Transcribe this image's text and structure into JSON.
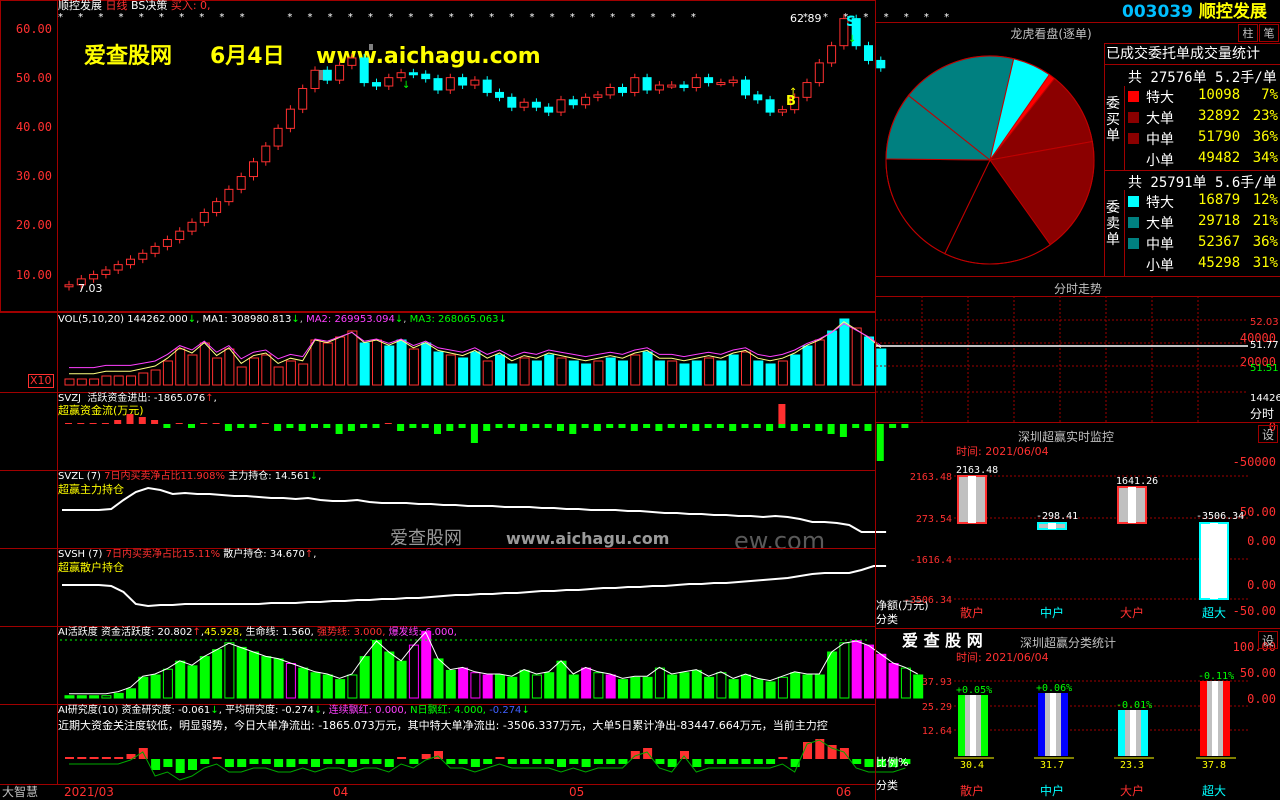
{
  "header": {
    "stock_name": "顺控发展",
    "period": "日线",
    "strategy": "BS决策",
    "buy_in": "买入: 0,",
    "watermark_site": "爱查股网",
    "watermark_date": "6月4日",
    "watermark_url": "www.aichagu.com"
  },
  "main_chart": {
    "y_ticks": [
      "60.00",
      "50.00",
      "40.00",
      "30.00",
      "20.00",
      "10.00"
    ],
    "high_label": "62.89",
    "low_label": "7.03",
    "signal_s": "S",
    "signal_b": "B"
  },
  "vol": {
    "title": "VOL(5,10,20)",
    "value": "144262.000",
    "ma1": "MA1: 308980.813",
    "ma2": "MA2: 269953.094",
    "ma3": "MA3: 268065.063",
    "y_ticks": [
      "40000",
      "20000"
    ],
    "unit": "X10"
  },
  "svzj": {
    "title": "SVZJ",
    "label": "活跃资金进出: -1865.076",
    "sub": "超赢资金流(万元)",
    "y_ticks": [
      "0",
      "-50000"
    ]
  },
  "svzl": {
    "title": "SVZL (7)",
    "label1": "7日内买卖净占比11.908%",
    "label2": "主力持仓: 14.561",
    "sub": "超赢主力持仓",
    "y_ticks": [
      "50.00",
      "0.00"
    ]
  },
  "svsh": {
    "title": "SVSH (7)",
    "label1": "7日内买卖净占比15.11%",
    "label2": "散户持仓: 34.670",
    "sub": "超赢散户持仓",
    "y_ticks": [
      "0.00",
      "-50.00"
    ]
  },
  "ai_active": {
    "title": "AI活跃度",
    "l1": "资金活跃度: 20.802",
    "l2": "45.928,",
    "l3": "生命线: 1.560,",
    "l4": "强势线: 3.000,",
    "l5": "爆发线: 6.000,",
    "y_ticks": [
      "100.00",
      "50.00",
      "0.00"
    ]
  },
  "ai_research": {
    "title": "AI研究度(10)",
    "l1": "资金研究度: -0.061",
    "l2": "平均研究度: -0.274",
    "l3": "连续飘红: 0.000,",
    "l4": "N日飘红: 4.000,",
    "l5": "-0.274",
    "desc": "近期大资金关注度较低，明显弱势，今日大单净流出: -1865.073万元，其中特大单净流出: -3506.337万元，大单5日累计净出-83447.664万元，当前主力控"
  },
  "bottom_axis": {
    "brand": "大智慧",
    "dates": [
      "2021/03",
      "04",
      "05",
      "06"
    ]
  },
  "watermark2": {
    "site": "爱查股网",
    "url": "www.aichagu.com",
    "tail": "ew.com"
  },
  "right_panel": {
    "code": "003039",
    "name": "顺控发展",
    "pie_title": "龙虎看盘(逐单)",
    "btn1": "柱",
    "btn2": "笔",
    "stats_title": "已成交委托单成交量统计",
    "buy_header": "共 27576单 5.2手/单",
    "buy_side": "委买单",
    "buy_rows": [
      {
        "name": "特大",
        "vol": "10098",
        "pct": "7%"
      },
      {
        "name": "大单",
        "vol": "32892",
        "pct": "23%"
      },
      {
        "name": "中单",
        "vol": "51790",
        "pct": "36%"
      },
      {
        "name": "小单",
        "vol": "49482",
        "pct": "34%"
      }
    ],
    "sell_header": "共 25791单 5.6手/单",
    "sell_side": "委卖单",
    "sell_rows": [
      {
        "name": "特大",
        "vol": "16879",
        "pct": "12%"
      },
      {
        "name": "大单",
        "vol": "29718",
        "pct": "21%"
      },
      {
        "name": "中单",
        "vol": "52367",
        "pct": "36%"
      },
      {
        "name": "小单",
        "vol": "45298",
        "pct": "31%"
      }
    ],
    "timeshare_title": "分时走势",
    "ts_prices": [
      "52.03",
      "51.77",
      "51.51",
      "14426"
    ],
    "ts_label": "分时",
    "monitor_title": "深圳超赢实时监控",
    "monitor_btn": "设",
    "monitor_time": "时间: 2021/06/04",
    "monitor_y": [
      "2163.48",
      "273.54",
      "-1616.4",
      "-3506.34"
    ],
    "monitor_vals": [
      "2163.48",
      "-298.41",
      "1641.26",
      "-3506.34"
    ],
    "monitor_ylabel": "净额(万元)",
    "monitor_xlabel": "分类",
    "cats": [
      "散户",
      "中户",
      "大户",
      "超大"
    ],
    "class_brand": "爱 查 股 网",
    "class_title": "深圳超赢分类统计",
    "class_btn": "设",
    "class_time": "时间: 2021/06/04",
    "class_y": [
      "37.93",
      "25.29",
      "12.64"
    ],
    "class_top": [
      "+0.05%",
      "+0.06%",
      "-0.01%",
      "-0.11%"
    ],
    "class_bottom": [
      "30.4",
      "31.7",
      "23.3",
      "37.8"
    ],
    "class_ylabel": "比例%",
    "class_xlabel": "分类"
  },
  "colors": {
    "up": "#ff3030",
    "down": "#00ffff",
    "grid": "#a00000"
  }
}
